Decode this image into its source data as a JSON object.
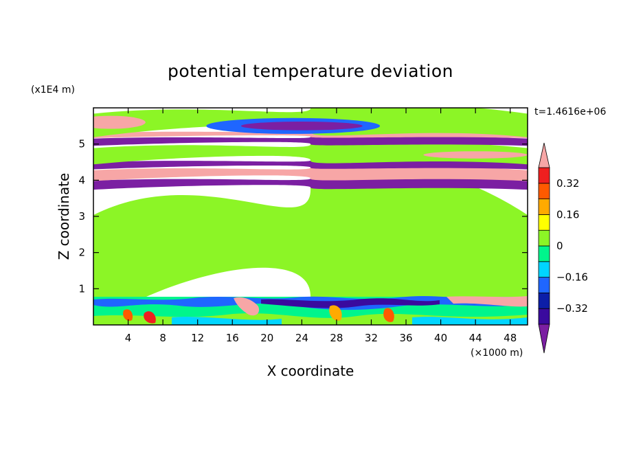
{
  "chart_data": {
    "type": "heatmap",
    "title": "potential temperature deviation",
    "xlabel": "X coordinate",
    "ylabel": "Z coordinate",
    "x_unit": "(×1000 m)",
    "y_unit": "(x1E4 m)",
    "time_stamp": "t=1.4616e+06",
    "xlim": [
      0,
      50
    ],
    "ylim": [
      0,
      6
    ],
    "x_ticks": [
      4,
      8,
      12,
      16,
      20,
      24,
      28,
      32,
      36,
      40,
      44,
      48
    ],
    "x_tick_labels": [
      "4",
      "8",
      "12",
      "16",
      "20",
      "24",
      "28",
      "32",
      "36",
      "40",
      "44",
      "48"
    ],
    "y_ticks": [
      1,
      2,
      3,
      4,
      5
    ],
    "y_tick_labels": [
      "1",
      "2",
      "3",
      "4",
      "5"
    ],
    "colorbar": {
      "levels": [
        -0.4,
        -0.32,
        -0.24,
        -0.16,
        -0.08,
        0,
        0.08,
        0.16,
        0.24,
        0.32,
        0.4
      ],
      "tick_values": [
        -0.32,
        -0.16,
        0,
        0.16,
        0.32
      ],
      "tick_labels": [
        "−0.32",
        "−0.16",
        "0",
        "0.16",
        "0.32"
      ],
      "extend": "both",
      "colors": [
        "#7b1fa2",
        "#3a0a9e",
        "#0c1ea8",
        "#1f66ff",
        "#00d5ff",
        "#00f58c",
        "#8cf526",
        "#ffff00",
        "#ffaa00",
        "#ff5a00",
        "#ef1f1f",
        "#f7a6a6"
      ]
    },
    "fields": [
      {
        "type": "band",
        "x": [
          0,
          50
        ],
        "z": [
          0.75,
          3.8
        ],
        "value": 0.03
      },
      {
        "type": "band",
        "x": [
          0,
          50
        ],
        "z": [
          3.8,
          4.05
        ],
        "value": -0.42
      },
      {
        "type": "band",
        "x": [
          0,
          50
        ],
        "z": [
          4.05,
          4.35
        ],
        "value": 0.45
      },
      {
        "type": "band",
        "x": [
          0,
          50
        ],
        "z": [
          4.35,
          4.55
        ],
        "value": -0.42
      },
      {
        "type": "band",
        "x": [
          0,
          50
        ],
        "z": [
          4.55,
          5.0
        ],
        "value": 0.03
      },
      {
        "type": "band",
        "x": [
          0,
          50
        ],
        "z": [
          5.0,
          5.2
        ],
        "value": -0.42
      },
      {
        "type": "band",
        "x": [
          0,
          50
        ],
        "z": [
          5.2,
          5.35
        ],
        "value": 0.45
      },
      {
        "type": "band",
        "x": [
          0,
          50
        ],
        "z": [
          5.35,
          6.0
        ],
        "value": 0.03
      },
      {
        "type": "ellipse",
        "x": 23,
        "z": 5.5,
        "rx": 10,
        "rz": 0.22,
        "value": -0.2
      },
      {
        "type": "ellipse",
        "x": 24,
        "z": 5.5,
        "rx": 7,
        "rz": 0.12,
        "value": -0.42
      },
      {
        "type": "ellipse",
        "x": 44,
        "z": 4.7,
        "rx": 6,
        "rz": 0.1,
        "value": 0.45
      },
      {
        "type": "ellipse",
        "x": 2,
        "z": 5.6,
        "rx": 4,
        "rz": 0.18,
        "value": 0.45
      }
    ]
  }
}
